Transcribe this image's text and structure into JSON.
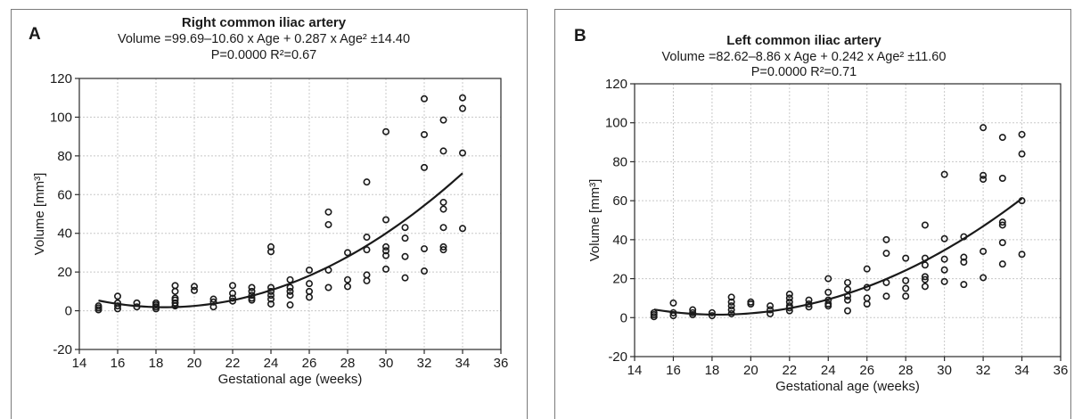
{
  "chart_data": [
    {
      "type": "scatter",
      "panel_label": "A",
      "title": "Right common iliac artery",
      "equation_line1": "Volume =99.69–10.60 x Age + 0.287 x Age² ±14.40",
      "equation_line2": "P=0.0000   R²=0.67",
      "xlabel": "Gestational age (weeks)",
      "ylabel": "Volume [mm³]",
      "xlim": [
        14,
        36
      ],
      "ylim": [
        -20,
        120
      ],
      "xticks": [
        14,
        16,
        18,
        20,
        22,
        24,
        26,
        28,
        30,
        32,
        34,
        36
      ],
      "yticks": [
        -20,
        0,
        20,
        40,
        60,
        80,
        100,
        120
      ],
      "grid": true,
      "fit": {
        "a": 99.69,
        "b": -10.6,
        "c": 0.287,
        "x_from": 15,
        "x_to": 34
      },
      "points": [
        [
          15,
          0.5
        ],
        [
          15,
          1.5
        ],
        [
          15,
          2.5
        ],
        [
          16,
          1
        ],
        [
          16,
          2.5
        ],
        [
          16,
          4
        ],
        [
          16,
          7.5
        ],
        [
          17,
          2
        ],
        [
          17,
          4
        ],
        [
          18,
          1
        ],
        [
          18,
          2
        ],
        [
          18,
          3
        ],
        [
          18,
          4
        ],
        [
          19,
          2.5
        ],
        [
          19,
          4
        ],
        [
          19,
          5.5
        ],
        [
          19,
          6.5
        ],
        [
          19,
          10
        ],
        [
          19,
          13
        ],
        [
          20,
          10.5
        ],
        [
          20,
          12.5
        ],
        [
          21,
          2
        ],
        [
          21,
          4.5
        ],
        [
          21,
          6
        ],
        [
          22,
          5
        ],
        [
          22,
          6.5
        ],
        [
          22,
          9
        ],
        [
          22,
          13
        ],
        [
          23,
          5.5
        ],
        [
          23,
          6.5
        ],
        [
          23,
          8
        ],
        [
          23,
          10
        ],
        [
          23,
          12
        ],
        [
          24,
          3.5
        ],
        [
          24,
          6
        ],
        [
          24,
          8
        ],
        [
          24,
          10
        ],
        [
          24,
          12
        ],
        [
          24,
          30.5
        ],
        [
          24,
          33
        ],
        [
          25,
          3
        ],
        [
          25,
          8
        ],
        [
          25,
          10
        ],
        [
          25,
          12
        ],
        [
          25,
          16
        ],
        [
          26,
          7
        ],
        [
          26,
          10
        ],
        [
          26,
          14
        ],
        [
          26,
          21
        ],
        [
          27,
          12
        ],
        [
          27,
          21
        ],
        [
          27,
          44.5
        ],
        [
          27,
          51
        ],
        [
          28,
          12.5
        ],
        [
          28,
          16
        ],
        [
          28,
          30
        ],
        [
          29,
          15.5
        ],
        [
          29,
          18.5
        ],
        [
          29,
          31.5
        ],
        [
          29,
          38
        ],
        [
          29,
          66.5
        ],
        [
          30,
          21.5
        ],
        [
          30,
          28.5
        ],
        [
          30,
          31
        ],
        [
          30,
          33
        ],
        [
          30,
          47
        ],
        [
          30,
          92.5
        ],
        [
          31,
          17
        ],
        [
          31,
          28
        ],
        [
          31,
          37.5
        ],
        [
          31,
          43
        ],
        [
          32,
          20.5
        ],
        [
          32,
          32
        ],
        [
          32,
          74
        ],
        [
          32,
          91
        ],
        [
          32,
          109.5
        ],
        [
          33,
          31.5
        ],
        [
          33,
          33
        ],
        [
          33,
          43
        ],
        [
          33,
          52.5
        ],
        [
          33,
          56
        ],
        [
          33,
          82.5
        ],
        [
          33,
          98.5
        ],
        [
          34,
          42.5
        ],
        [
          34,
          81.5
        ],
        [
          34,
          104.5
        ],
        [
          34,
          110
        ]
      ]
    },
    {
      "type": "scatter",
      "panel_label": "B",
      "title": "Left common iliac artery",
      "equation_line1": "Volume =82.62–8.86 x Age + 0.242 x Age² ±11.60",
      "equation_line2": "P=0.0000   R²=0.71",
      "xlabel": "Gestational age (weeks)",
      "ylabel": "Volume [mm³]",
      "xlim": [
        14,
        36
      ],
      "ylim": [
        -20,
        120
      ],
      "xticks": [
        14,
        16,
        18,
        20,
        22,
        24,
        26,
        28,
        30,
        32,
        34,
        36
      ],
      "yticks": [
        -20,
        0,
        20,
        40,
        60,
        80,
        100,
        120
      ],
      "grid": true,
      "fit": {
        "a": 82.62,
        "b": -8.86,
        "c": 0.242,
        "x_from": 15,
        "x_to": 34
      },
      "points": [
        [
          15,
          0.5
        ],
        [
          15,
          1.5
        ],
        [
          15,
          2.5
        ],
        [
          16,
          1
        ],
        [
          16,
          2.5
        ],
        [
          16,
          7.5
        ],
        [
          17,
          1.5
        ],
        [
          17,
          2.5
        ],
        [
          17,
          4
        ],
        [
          18,
          1
        ],
        [
          18,
          2.5
        ],
        [
          19,
          2
        ],
        [
          19,
          4
        ],
        [
          19,
          6
        ],
        [
          19,
          8
        ],
        [
          19,
          10.5
        ],
        [
          20,
          7
        ],
        [
          20,
          8
        ],
        [
          21,
          2
        ],
        [
          21,
          4
        ],
        [
          21,
          6
        ],
        [
          22,
          3.5
        ],
        [
          22,
          5
        ],
        [
          22,
          6
        ],
        [
          22,
          8
        ],
        [
          22,
          10
        ],
        [
          22,
          12
        ],
        [
          23,
          5.5
        ],
        [
          23,
          7
        ],
        [
          23,
          9
        ],
        [
          24,
          6
        ],
        [
          24,
          7
        ],
        [
          24,
          9
        ],
        [
          24,
          13
        ],
        [
          24,
          20
        ],
        [
          25,
          3.5
        ],
        [
          25,
          9
        ],
        [
          25,
          11
        ],
        [
          25,
          14.5
        ],
        [
          25,
          18
        ],
        [
          26,
          7
        ],
        [
          26,
          10
        ],
        [
          26,
          15.5
        ],
        [
          26,
          25
        ],
        [
          27,
          11
        ],
        [
          27,
          18
        ],
        [
          27,
          33
        ],
        [
          27,
          40
        ],
        [
          28,
          11
        ],
        [
          28,
          15
        ],
        [
          28,
          19
        ],
        [
          28,
          30.5
        ],
        [
          29,
          16
        ],
        [
          29,
          19.5
        ],
        [
          29,
          21
        ],
        [
          29,
          27
        ],
        [
          29,
          30.5
        ],
        [
          29,
          47.5
        ],
        [
          30,
          18.5
        ],
        [
          30,
          24.5
        ],
        [
          30,
          30
        ],
        [
          30,
          40.5
        ],
        [
          30,
          73.5
        ],
        [
          31,
          17
        ],
        [
          31,
          28.5
        ],
        [
          31,
          31
        ],
        [
          31,
          41.5
        ],
        [
          32,
          20.5
        ],
        [
          32,
          34
        ],
        [
          32,
          71
        ],
        [
          32,
          73
        ],
        [
          32,
          97.5
        ],
        [
          33,
          27.5
        ],
        [
          33,
          38.5
        ],
        [
          33,
          47.5
        ],
        [
          33,
          49
        ],
        [
          33,
          71.5
        ],
        [
          33,
          92.5
        ],
        [
          34,
          32.5
        ],
        [
          34,
          60
        ],
        [
          34,
          84
        ],
        [
          34,
          94
        ]
      ]
    }
  ]
}
